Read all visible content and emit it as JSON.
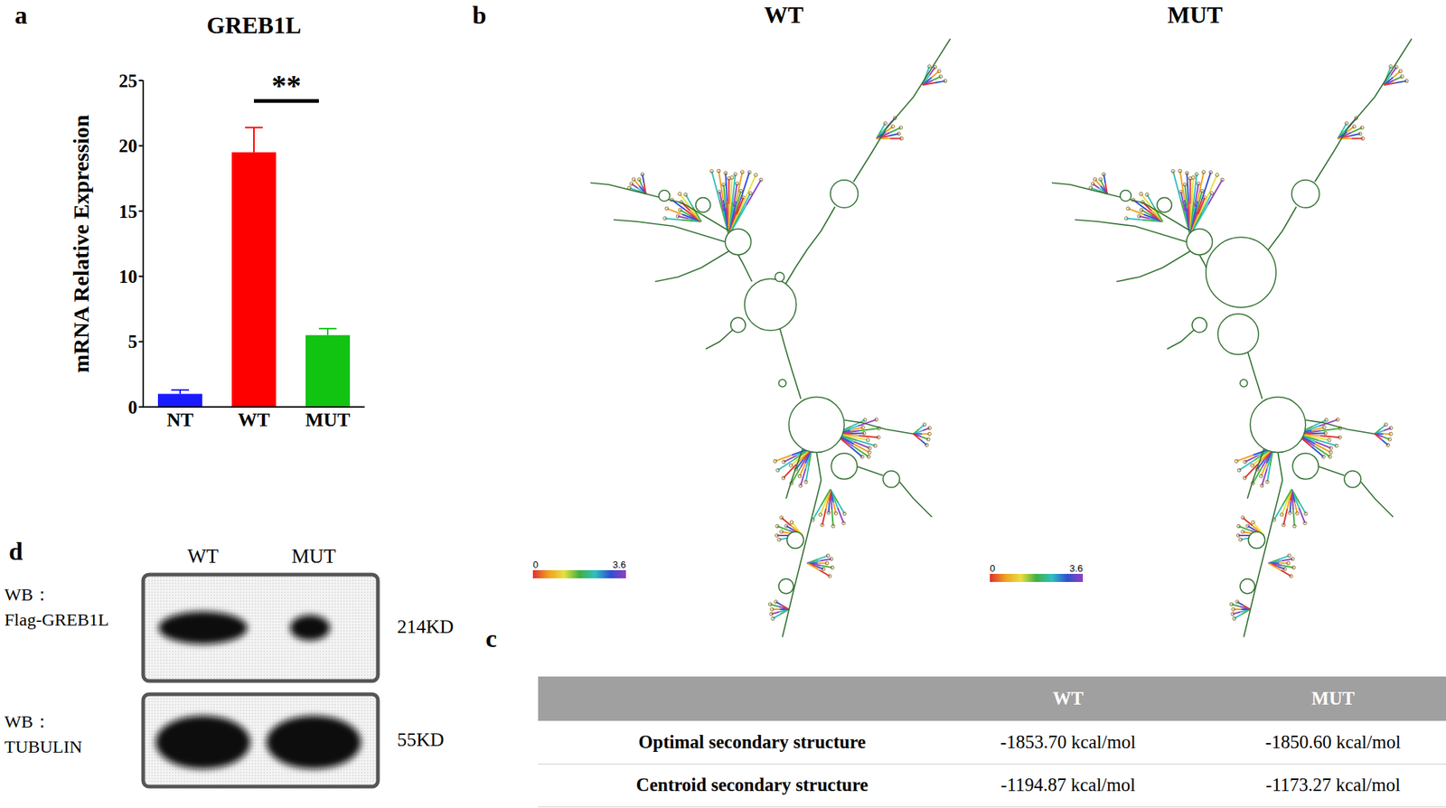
{
  "panel_labels": [
    "a",
    "b",
    "c",
    "d"
  ],
  "chart_data": {
    "type": "bar",
    "title": "GREB1L",
    "y_label": "mRNA Relative Expression",
    "categories": [
      "NT",
      "WT",
      "MUT"
    ],
    "values": [
      1.0,
      19.5,
      5.5
    ],
    "errors": [
      0.3,
      1.9,
      0.5
    ],
    "colors": [
      "#1a1aff",
      "#ff0000",
      "#11c411"
    ],
    "ylim": [
      0,
      25
    ],
    "yticks": [
      0,
      5,
      10,
      15,
      20,
      25
    ],
    "annotations": [
      {
        "text": "**",
        "from": "WT",
        "to": "MUT"
      }
    ]
  },
  "structure_panel": {
    "titles": [
      "WT",
      "MUT"
    ],
    "colorbar": {
      "range": [
        0,
        3.6
      ],
      "ticks": [
        0,
        3.6
      ]
    }
  },
  "table_panel": {
    "columns": [
      "WT",
      "MUT"
    ],
    "rows": [
      {
        "label": "Optimal secondary structure",
        "values": [
          "-1853.70 kcal/mol",
          "-1850.60 kcal/mol"
        ]
      },
      {
        "label": "Centroid secondary structure",
        "values": [
          "-1194.87 kcal/mol",
          "-1173.27 kcal/mol"
        ]
      }
    ]
  },
  "blot_panel": {
    "lanes": [
      "WT",
      "MUT"
    ],
    "rows": [
      {
        "label": [
          "WB：",
          "Flag-GREB1L"
        ],
        "size": "214KD",
        "band_intensity": [
          1.0,
          0.45
        ]
      },
      {
        "label": [
          "WB：",
          "TUBULIN"
        ],
        "size": "55KD",
        "band_intensity": [
          1.0,
          1.0
        ]
      }
    ]
  }
}
